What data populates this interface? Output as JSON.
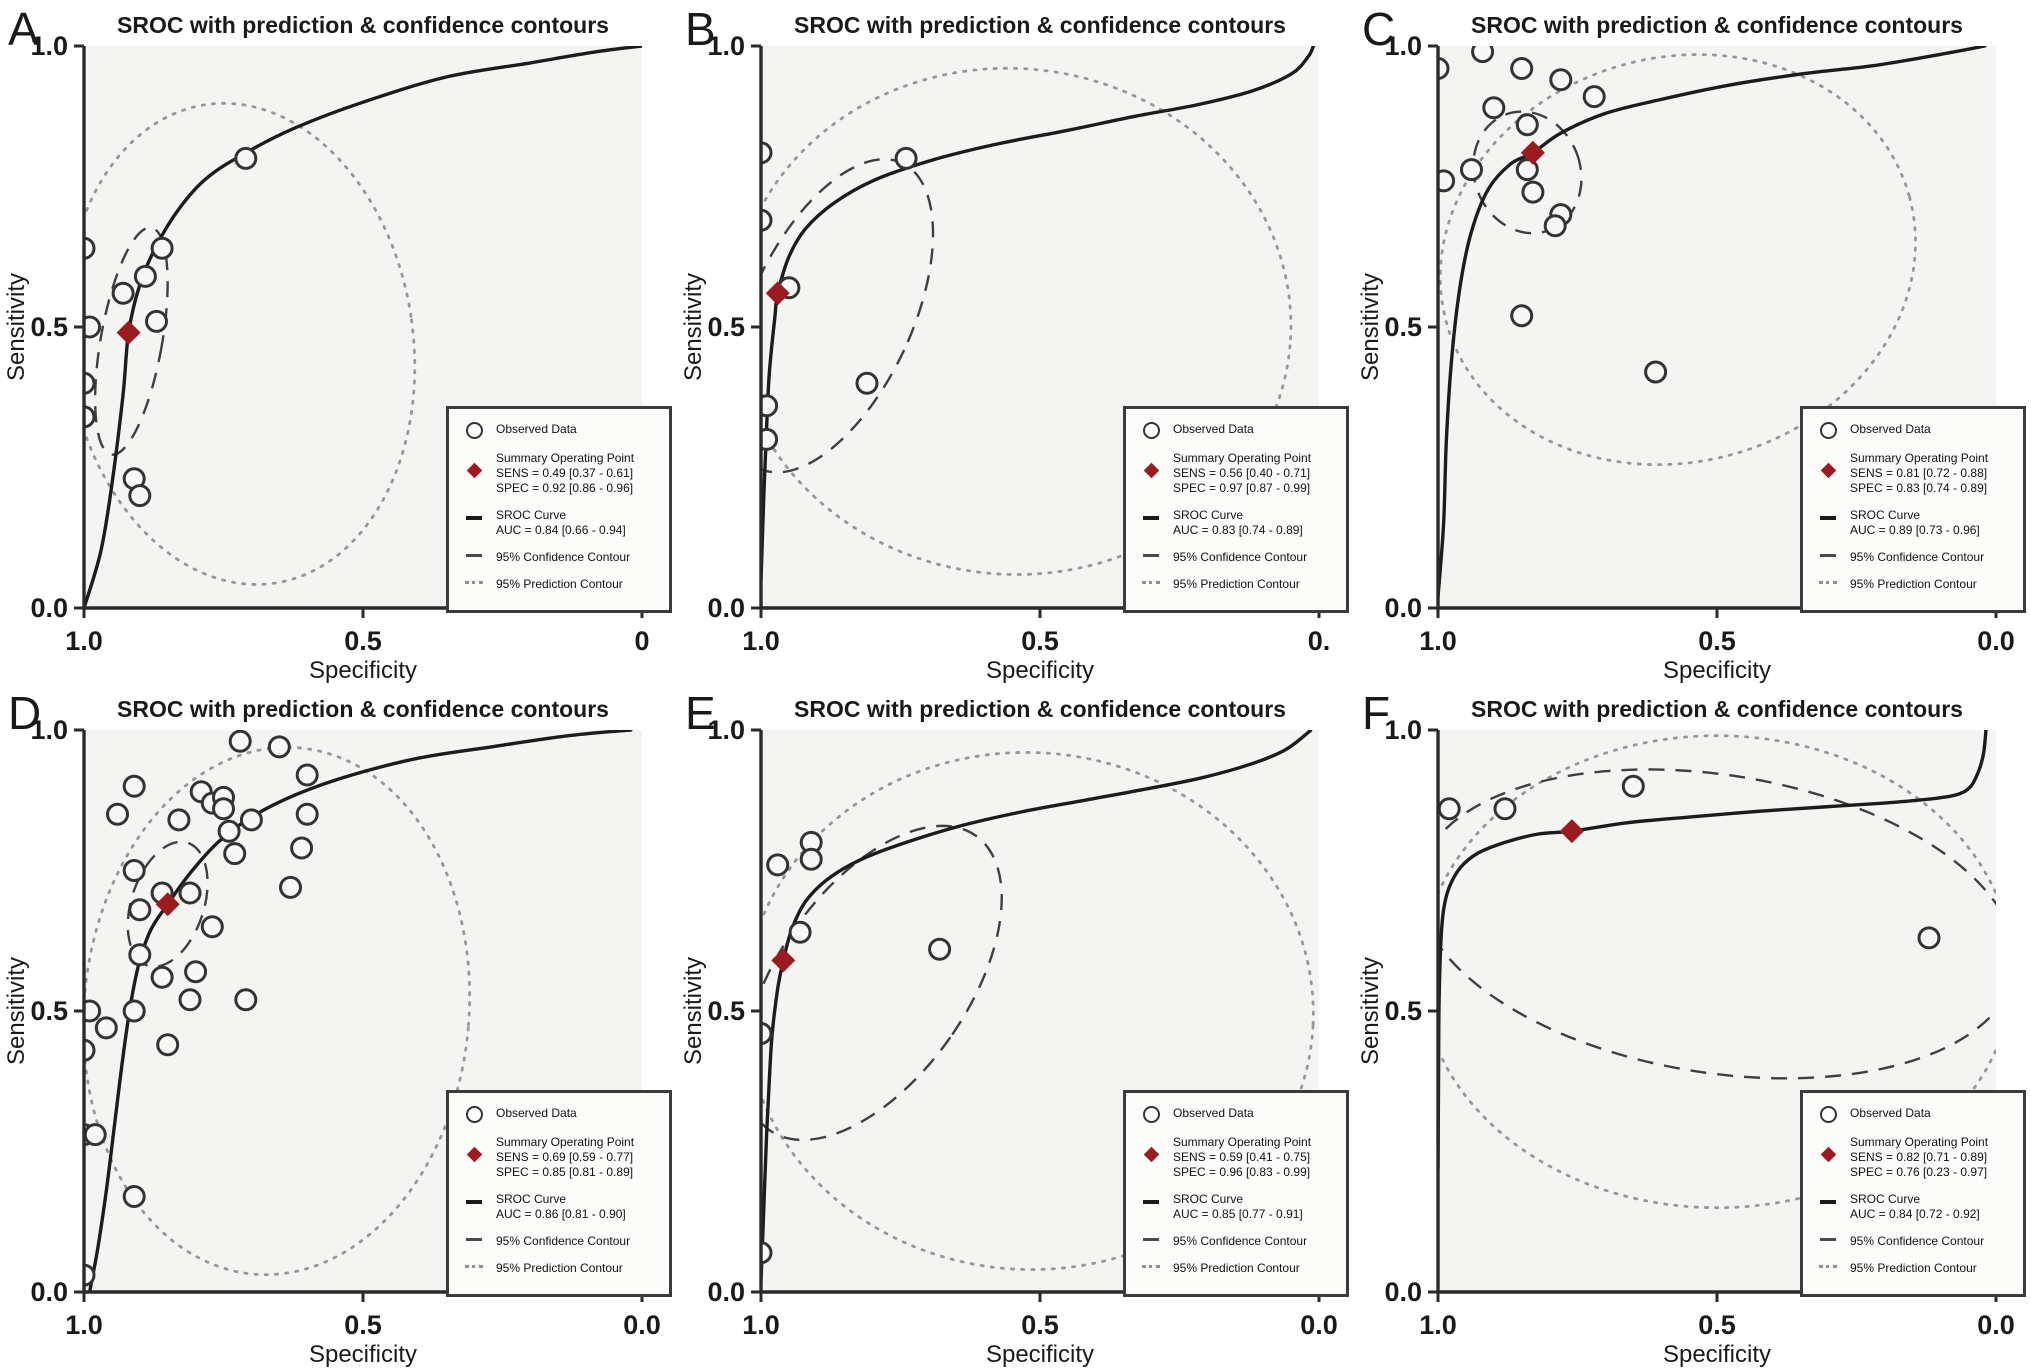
{
  "figure": {
    "xlabel": "Specificity",
    "ylabel": "Sensitivity",
    "colors": {
      "curve": "#1c1c1c",
      "axis": "#2a2a2a",
      "contour_conf": "#3f3f3f",
      "contour_pred": "#979797",
      "point_stroke": "#333333",
      "point_fill": "#f7f7f5",
      "summary_fill": "#9c1b20",
      "plot_bg": "#f4f4f2",
      "text": "#1a1a1a"
    },
    "legend": {
      "observed": "Observed Data",
      "summary_title": "Summary Operating Point",
      "sroc_title": "SROC Curve",
      "confidence": "95% Confidence Contour",
      "prediction": "95% Prediction Contour"
    }
  },
  "chart_data": [
    {
      "panel_letter": "A",
      "type": "scatter",
      "title": "SROC with prediction & confidence contours",
      "xlabel": "Specificity",
      "ylabel": "Sensitivity",
      "x_reversed": true,
      "xlim": [
        1.0,
        0.0
      ],
      "ylim": [
        0.0,
        1.0
      ],
      "x_ticks": [
        1.0,
        0.5,
        0.0
      ],
      "x_tick_labels": [
        "1.0",
        "0.5",
        "0"
      ],
      "y_ticks": [
        1.0,
        0.5,
        0.0
      ],
      "y_tick_labels": [
        "1.0",
        "0.5",
        "0.0"
      ],
      "summary": {
        "spec": 0.92,
        "sens": 0.49
      },
      "auc": 0.84,
      "legend": {
        "sens": "SENS = 0.49 [0.37 - 0.61]",
        "spec": "SPEC = 0.92 [0.86 - 0.96]",
        "auc": "AUC = 0.84 [0.66 - 0.94]"
      },
      "points": [
        [
          0.71,
          0.8
        ],
        [
          1.0,
          0.64
        ],
        [
          0.86,
          0.64
        ],
        [
          0.89,
          0.59
        ],
        [
          0.93,
          0.56
        ],
        [
          0.87,
          0.51
        ],
        [
          0.99,
          0.5
        ],
        [
          1.0,
          0.4
        ],
        [
          1.0,
          0.34
        ],
        [
          0.91,
          0.23
        ],
        [
          0.9,
          0.2
        ]
      ],
      "sroc": [
        [
          1.0,
          0.0
        ],
        [
          0.97,
          0.1
        ],
        [
          0.95,
          0.22
        ],
        [
          0.93,
          0.38
        ],
        [
          0.92,
          0.49
        ],
        [
          0.9,
          0.575
        ],
        [
          0.87,
          0.645
        ],
        [
          0.83,
          0.71
        ],
        [
          0.78,
          0.765
        ],
        [
          0.71,
          0.81
        ],
        [
          0.62,
          0.855
        ],
        [
          0.5,
          0.9
        ],
        [
          0.35,
          0.945
        ],
        [
          0.2,
          0.97
        ],
        [
          0.08,
          0.99
        ],
        [
          0.0,
          1.0
        ]
      ],
      "confidence_contour": {
        "cx": 0.915,
        "cy": 0.475,
        "rx": 0.055,
        "ry": 0.205,
        "rot_deg": 10
      },
      "prediction_contour": {
        "cx": 0.72,
        "cy": 0.47,
        "rx": 0.31,
        "ry": 0.43,
        "rot_deg": -8
      }
    },
    {
      "panel_letter": "B",
      "type": "scatter",
      "title": "SROC with prediction & confidence contours",
      "xlabel": "Specificity",
      "ylabel": "Sensitivity",
      "x_reversed": true,
      "xlim": [
        1.0,
        0.0
      ],
      "ylim": [
        0.0,
        1.0
      ],
      "x_ticks": [
        1.0,
        0.5,
        0.0
      ],
      "x_tick_labels": [
        "1.0",
        "0.5",
        "0."
      ],
      "y_ticks": [
        1.0,
        0.5,
        0.0
      ],
      "y_tick_labels": [
        "1.0",
        "0.5",
        "0.0"
      ],
      "summary": {
        "spec": 0.97,
        "sens": 0.56
      },
      "auc": 0.83,
      "legend": {
        "sens": "SENS = 0.56 [0.40 - 0.71]",
        "spec": "SPEC = 0.97 [0.87 - 0.99]",
        "auc": "AUC = 0.83 [0.74 - 0.89]"
      },
      "points": [
        [
          1.0,
          0.81
        ],
        [
          0.74,
          0.8
        ],
        [
          1.0,
          0.69
        ],
        [
          0.95,
          0.57
        ],
        [
          0.81,
          0.4
        ],
        [
          0.99,
          0.36
        ],
        [
          0.99,
          0.3
        ]
      ],
      "sroc": [
        [
          1.0,
          0.05
        ],
        [
          0.995,
          0.2
        ],
        [
          0.99,
          0.32
        ],
        [
          0.985,
          0.42
        ],
        [
          0.975,
          0.52
        ],
        [
          0.97,
          0.56
        ],
        [
          0.95,
          0.625
        ],
        [
          0.92,
          0.675
        ],
        [
          0.87,
          0.72
        ],
        [
          0.8,
          0.76
        ],
        [
          0.7,
          0.795
        ],
        [
          0.58,
          0.825
        ],
        [
          0.45,
          0.85
        ],
        [
          0.33,
          0.875
        ],
        [
          0.22,
          0.895
        ],
        [
          0.12,
          0.92
        ],
        [
          0.05,
          0.95
        ],
        [
          0.02,
          0.98
        ],
        [
          0.01,
          1.0
        ]
      ],
      "confidence_contour": {
        "cx": 0.875,
        "cy": 0.52,
        "rx": 0.145,
        "ry": 0.3,
        "rot_deg": 25
      },
      "prediction_contour": {
        "cx": 0.55,
        "cy": 0.51,
        "rx": 0.5,
        "ry": 0.45,
        "rot_deg": 5
      }
    },
    {
      "panel_letter": "C",
      "type": "scatter",
      "title": "SROC with prediction & confidence contours",
      "xlabel": "Specificity",
      "ylabel": "Sensitivity",
      "x_reversed": true,
      "xlim": [
        1.0,
        0.0
      ],
      "ylim": [
        0.0,
        1.0
      ],
      "x_ticks": [
        1.0,
        0.5,
        0.0
      ],
      "x_tick_labels": [
        "1.0",
        "0.5",
        "0.0"
      ],
      "y_ticks": [
        1.0,
        0.5,
        0.0
      ],
      "y_tick_labels": [
        "1.0",
        "0.5",
        "0.0"
      ],
      "summary": {
        "spec": 0.83,
        "sens": 0.81
      },
      "auc": 0.89,
      "legend": {
        "sens": "SENS = 0.81 [0.72 - 0.88]",
        "spec": "SPEC = 0.83 [0.74 - 0.89]",
        "auc": "AUC = 0.89 [0.73 - 0.96]"
      },
      "points": [
        [
          0.92,
          0.99
        ],
        [
          1.0,
          0.96
        ],
        [
          0.85,
          0.96
        ],
        [
          0.78,
          0.94
        ],
        [
          0.72,
          0.91
        ],
        [
          0.9,
          0.89
        ],
        [
          0.84,
          0.86
        ],
        [
          0.94,
          0.78
        ],
        [
          0.99,
          0.76
        ],
        [
          0.84,
          0.78
        ],
        [
          0.83,
          0.74
        ],
        [
          0.78,
          0.7
        ],
        [
          0.79,
          0.68
        ],
        [
          0.85,
          0.52
        ],
        [
          0.61,
          0.42
        ]
      ],
      "sroc": [
        [
          1.0,
          0.02
        ],
        [
          0.99,
          0.15
        ],
        [
          0.985,
          0.3
        ],
        [
          0.975,
          0.45
        ],
        [
          0.96,
          0.575
        ],
        [
          0.94,
          0.67
        ],
        [
          0.91,
          0.745
        ],
        [
          0.87,
          0.79
        ],
        [
          0.83,
          0.81
        ],
        [
          0.78,
          0.845
        ],
        [
          0.7,
          0.88
        ],
        [
          0.6,
          0.905
        ],
        [
          0.48,
          0.93
        ],
        [
          0.35,
          0.95
        ],
        [
          0.22,
          0.965
        ],
        [
          0.1,
          0.985
        ],
        [
          0.02,
          1.0
        ]
      ],
      "confidence_contour": {
        "cx": 0.84,
        "cy": 0.775,
        "rx": 0.095,
        "ry": 0.11,
        "rot_deg": -20
      },
      "prediction_contour": {
        "cx": 0.57,
        "cy": 0.62,
        "rx": 0.43,
        "ry": 0.36,
        "rot_deg": -15
      }
    },
    {
      "panel_letter": "D",
      "type": "scatter",
      "title": "SROC with prediction & confidence contours",
      "xlabel": "Specificity",
      "ylabel": "Sensitivity",
      "x_reversed": true,
      "xlim": [
        1.0,
        0.0
      ],
      "ylim": [
        0.0,
        1.0
      ],
      "x_ticks": [
        1.0,
        0.5,
        0.0
      ],
      "x_tick_labels": [
        "1.0",
        "0.5",
        "0.0"
      ],
      "y_ticks": [
        1.0,
        0.5,
        0.0
      ],
      "y_tick_labels": [
        "1.0",
        "0.5",
        "0.0"
      ],
      "summary": {
        "spec": 0.85,
        "sens": 0.69
      },
      "auc": 0.86,
      "legend": {
        "sens": "SENS = 0.69 [0.59 - 0.77]",
        "spec": "SPEC = 0.85 [0.81 - 0.89]",
        "auc": "AUC = 0.86 [0.81 - 0.90]"
      },
      "points": [
        [
          0.72,
          0.98
        ],
        [
          0.65,
          0.97
        ],
        [
          0.91,
          0.9
        ],
        [
          0.6,
          0.92
        ],
        [
          0.94,
          0.85
        ],
        [
          0.79,
          0.89
        ],
        [
          0.77,
          0.87
        ],
        [
          0.75,
          0.88
        ],
        [
          0.75,
          0.86
        ],
        [
          0.83,
          0.84
        ],
        [
          0.7,
          0.84
        ],
        [
          0.6,
          0.85
        ],
        [
          0.74,
          0.82
        ],
        [
          0.73,
          0.78
        ],
        [
          0.61,
          0.79
        ],
        [
          0.91,
          0.75
        ],
        [
          0.63,
          0.72
        ],
        [
          0.86,
          0.71
        ],
        [
          0.81,
          0.71
        ],
        [
          0.9,
          0.68
        ],
        [
          0.77,
          0.65
        ],
        [
          0.9,
          0.6
        ],
        [
          0.86,
          0.56
        ],
        [
          0.8,
          0.57
        ],
        [
          0.71,
          0.52
        ],
        [
          0.81,
          0.52
        ],
        [
          0.91,
          0.5
        ],
        [
          0.99,
          0.5
        ],
        [
          0.96,
          0.47
        ],
        [
          0.85,
          0.44
        ],
        [
          1.0,
          0.43
        ],
        [
          1.0,
          0.28
        ],
        [
          0.98,
          0.28
        ],
        [
          0.91,
          0.17
        ],
        [
          1.0,
          0.03
        ]
      ],
      "sroc": [
        [
          0.99,
          0.0
        ],
        [
          0.975,
          0.08
        ],
        [
          0.96,
          0.18
        ],
        [
          0.945,
          0.3
        ],
        [
          0.93,
          0.42
        ],
        [
          0.915,
          0.52
        ],
        [
          0.9,
          0.59
        ],
        [
          0.88,
          0.645
        ],
        [
          0.85,
          0.69
        ],
        [
          0.81,
          0.745
        ],
        [
          0.76,
          0.8
        ],
        [
          0.7,
          0.845
        ],
        [
          0.62,
          0.885
        ],
        [
          0.52,
          0.92
        ],
        [
          0.4,
          0.95
        ],
        [
          0.27,
          0.97
        ],
        [
          0.13,
          0.99
        ],
        [
          0.02,
          1.0
        ]
      ],
      "confidence_contour": {
        "cx": 0.85,
        "cy": 0.69,
        "rx": 0.065,
        "ry": 0.115,
        "rot_deg": 18
      },
      "prediction_contour": {
        "cx": 0.655,
        "cy": 0.5,
        "rx": 0.345,
        "ry": 0.47,
        "rot_deg": 5
      }
    },
    {
      "panel_letter": "E",
      "type": "scatter",
      "title": "SROC with prediction & confidence contours",
      "xlabel": "Specificity",
      "ylabel": "Sensitivity",
      "x_reversed": true,
      "xlim": [
        1.0,
        0.0
      ],
      "ylim": [
        0.0,
        1.0
      ],
      "x_ticks": [
        1.0,
        0.5,
        0.0
      ],
      "x_tick_labels": [
        "1.0",
        "0.5",
        "0.0"
      ],
      "y_ticks": [
        1.0,
        0.5,
        0.0
      ],
      "y_tick_labels": [
        "1.0",
        "0.5",
        "0.0"
      ],
      "summary": {
        "spec": 0.96,
        "sens": 0.59
      },
      "auc": 0.85,
      "legend": {
        "sens": "SENS = 0.59 [0.41 - 0.75]",
        "spec": "SPEC = 0.96 [0.83 - 0.99]",
        "auc": "AUC = 0.85 [0.77 - 0.91]"
      },
      "points": [
        [
          0.91,
          0.8
        ],
        [
          0.91,
          0.77
        ],
        [
          0.97,
          0.76
        ],
        [
          0.93,
          0.64
        ],
        [
          0.68,
          0.61
        ],
        [
          1.0,
          0.46
        ],
        [
          1.0,
          0.07
        ]
      ],
      "sroc": [
        [
          1.0,
          0.02
        ],
        [
          0.995,
          0.15
        ],
        [
          0.99,
          0.28
        ],
        [
          0.985,
          0.38
        ],
        [
          0.98,
          0.46
        ],
        [
          0.97,
          0.54
        ],
        [
          0.96,
          0.59
        ],
        [
          0.945,
          0.645
        ],
        [
          0.92,
          0.695
        ],
        [
          0.88,
          0.735
        ],
        [
          0.82,
          0.77
        ],
        [
          0.74,
          0.8
        ],
        [
          0.64,
          0.83
        ],
        [
          0.53,
          0.855
        ],
        [
          0.42,
          0.875
        ],
        [
          0.31,
          0.895
        ],
        [
          0.21,
          0.915
        ],
        [
          0.12,
          0.94
        ],
        [
          0.06,
          0.965
        ],
        [
          0.02,
          0.995
        ],
        [
          0.015,
          1.0
        ]
      ],
      "confidence_contour": {
        "cx": 0.8,
        "cy": 0.55,
        "rx": 0.17,
        "ry": 0.32,
        "rot_deg": 35
      },
      "prediction_contour": {
        "cx": 0.52,
        "cy": 0.5,
        "rx": 0.51,
        "ry": 0.46,
        "rot_deg": 3
      }
    },
    {
      "panel_letter": "F",
      "type": "scatter",
      "title": "SROC with prediction & confidence contours",
      "xlabel": "Specificity",
      "ylabel": "Sensitivity",
      "x_reversed": true,
      "xlim": [
        1.0,
        0.0
      ],
      "ylim": [
        0.0,
        1.0
      ],
      "x_ticks": [
        1.0,
        0.5,
        0.0
      ],
      "x_tick_labels": [
        "1.0",
        "0.5",
        "0.0"
      ],
      "y_ticks": [
        1.0,
        0.5,
        0.0
      ],
      "y_tick_labels": [
        "1.0",
        "0.5",
        "0.0"
      ],
      "summary": {
        "spec": 0.76,
        "sens": 0.82
      },
      "auc": 0.84,
      "legend": {
        "sens": "SENS = 0.82 [0.71 - 0.89]",
        "spec": "SPEC = 0.76 [0.23 - 0.97]",
        "auc": "AUC = 0.84 [0.72 - 0.92]"
      },
      "points": [
        [
          0.98,
          0.86
        ],
        [
          0.88,
          0.86
        ],
        [
          0.65,
          0.9
        ],
        [
          0.12,
          0.63
        ]
      ],
      "sroc": [
        [
          1.0,
          0.22
        ],
        [
          0.999,
          0.4
        ],
        [
          0.998,
          0.52
        ],
        [
          0.995,
          0.62
        ],
        [
          0.99,
          0.68
        ],
        [
          0.98,
          0.72
        ],
        [
          0.96,
          0.755
        ],
        [
          0.93,
          0.78
        ],
        [
          0.88,
          0.8
        ],
        [
          0.82,
          0.815
        ],
        [
          0.76,
          0.82
        ],
        [
          0.66,
          0.835
        ],
        [
          0.55,
          0.845
        ],
        [
          0.43,
          0.855
        ],
        [
          0.31,
          0.863
        ],
        [
          0.2,
          0.87
        ],
        [
          0.12,
          0.877
        ],
        [
          0.07,
          0.885
        ],
        [
          0.045,
          0.9
        ],
        [
          0.03,
          0.93
        ],
        [
          0.022,
          0.96
        ],
        [
          0.018,
          1.0
        ]
      ],
      "confidence_contour": {
        "cx": 0.5,
        "cy": 0.655,
        "rx": 0.54,
        "ry": 0.265,
        "rot_deg": 9
      },
      "prediction_contour": {
        "cx": 0.5,
        "cy": 0.57,
        "rx": 0.53,
        "ry": 0.42,
        "rot_deg": 0
      }
    }
  ]
}
